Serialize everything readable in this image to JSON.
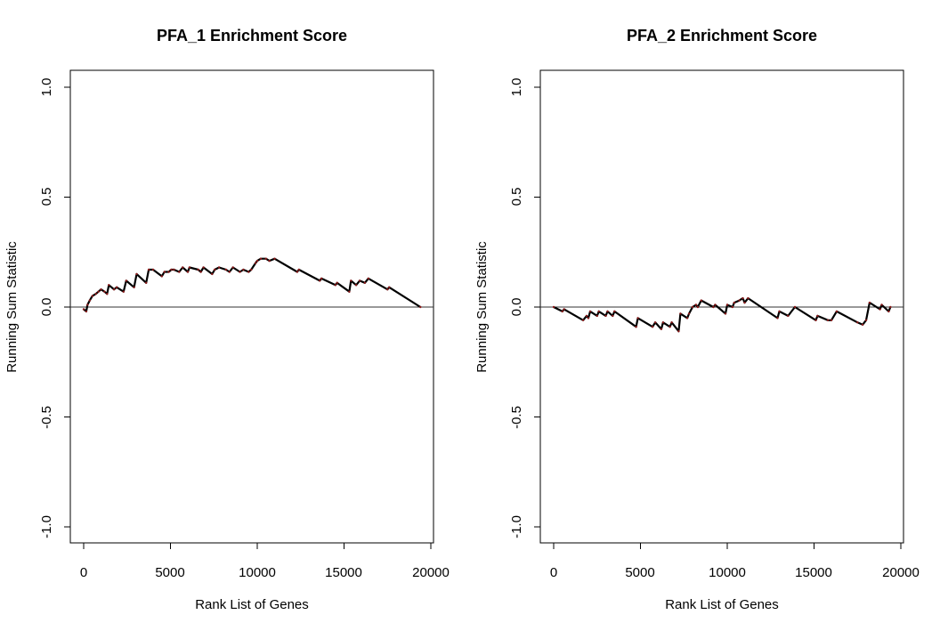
{
  "chart_data": [
    {
      "type": "line",
      "title": "PFA_1 Enrichment Score",
      "xlabel": "Rank List of Genes",
      "ylabel": "Running Sum Statistic",
      "xlim": [
        0,
        20000
      ],
      "ylim": [
        -1.0,
        1.0
      ],
      "x_ticks": [
        "0",
        "5000",
        "10000",
        "15000",
        "20000"
      ],
      "y_ticks": [
        "-1.0",
        "-0.5",
        "0.0",
        "0.5",
        "1.0"
      ],
      "reference_line": 0,
      "series": [
        {
          "color": "#000000",
          "points": [
            [
              0,
              -0.01
            ],
            [
              150,
              -0.02
            ],
            [
              220,
              0.01
            ],
            [
              350,
              0.03
            ],
            [
              500,
              0.05
            ],
            [
              700,
              0.06
            ],
            [
              850,
              0.07
            ],
            [
              1000,
              0.08
            ],
            [
              1200,
              0.07
            ],
            [
              1350,
              0.06
            ],
            [
              1450,
              0.1
            ],
            [
              1750,
              0.08
            ],
            [
              1900,
              0.09
            ],
            [
              2300,
              0.07
            ],
            [
              2450,
              0.12
            ],
            [
              2900,
              0.09
            ],
            [
              3050,
              0.15
            ],
            [
              3600,
              0.11
            ],
            [
              3750,
              0.17
            ],
            [
              4000,
              0.17
            ],
            [
              4500,
              0.14
            ],
            [
              4650,
              0.16
            ],
            [
              4900,
              0.16
            ],
            [
              5050,
              0.17
            ],
            [
              5200,
              0.17
            ],
            [
              5500,
              0.16
            ],
            [
              5700,
              0.18
            ],
            [
              6000,
              0.16
            ],
            [
              6100,
              0.18
            ],
            [
              6600,
              0.17
            ],
            [
              6750,
              0.16
            ],
            [
              6900,
              0.18
            ],
            [
              7400,
              0.15
            ],
            [
              7550,
              0.17
            ],
            [
              7800,
              0.18
            ],
            [
              8200,
              0.17
            ],
            [
              8400,
              0.16
            ],
            [
              8600,
              0.18
            ],
            [
              9000,
              0.16
            ],
            [
              9200,
              0.17
            ],
            [
              9500,
              0.16
            ],
            [
              9650,
              0.17
            ],
            [
              9900,
              0.2
            ],
            [
              10000,
              0.21
            ],
            [
              10200,
              0.22
            ],
            [
              10500,
              0.22
            ],
            [
              10700,
              0.21
            ],
            [
              11000,
              0.22
            ],
            [
              12300,
              0.16
            ],
            [
              12400,
              0.17
            ],
            [
              13600,
              0.12
            ],
            [
              13700,
              0.13
            ],
            [
              14500,
              0.1
            ],
            [
              14600,
              0.11
            ],
            [
              15300,
              0.07
            ],
            [
              15400,
              0.12
            ],
            [
              15700,
              0.1
            ],
            [
              15900,
              0.12
            ],
            [
              16200,
              0.11
            ],
            [
              16400,
              0.13
            ],
            [
              17500,
              0.08
            ],
            [
              17600,
              0.09
            ],
            [
              19400,
              0.0
            ]
          ]
        }
      ]
    },
    {
      "type": "line",
      "title": "PFA_2 Enrichment Score",
      "xlabel": "Rank List of Genes",
      "ylabel": "Running Sum Statistic",
      "xlim": [
        0,
        20000
      ],
      "ylim": [
        -1.0,
        1.0
      ],
      "x_ticks": [
        "0",
        "5000",
        "10000",
        "15000",
        "20000"
      ],
      "y_ticks": [
        "-1.0",
        "-0.5",
        "0.0",
        "0.5",
        "1.0"
      ],
      "reference_line": 0,
      "series": [
        {
          "color": "#000000",
          "points": [
            [
              0,
              0.0
            ],
            [
              500,
              -0.02
            ],
            [
              600,
              -0.01
            ],
            [
              1700,
              -0.06
            ],
            [
              1900,
              -0.04
            ],
            [
              2000,
              -0.05
            ],
            [
              2100,
              -0.02
            ],
            [
              2500,
              -0.04
            ],
            [
              2600,
              -0.02
            ],
            [
              3000,
              -0.04
            ],
            [
              3100,
              -0.02
            ],
            [
              3400,
              -0.04
            ],
            [
              3500,
              -0.02
            ],
            [
              4750,
              -0.09
            ],
            [
              4850,
              -0.05
            ],
            [
              5700,
              -0.09
            ],
            [
              5850,
              -0.07
            ],
            [
              6200,
              -0.1
            ],
            [
              6300,
              -0.07
            ],
            [
              6700,
              -0.09
            ],
            [
              6800,
              -0.07
            ],
            [
              7200,
              -0.11
            ],
            [
              7300,
              -0.03
            ],
            [
              7700,
              -0.05
            ],
            [
              7800,
              -0.03
            ],
            [
              8000,
              0.0
            ],
            [
              8200,
              0.01
            ],
            [
              8300,
              0.0
            ],
            [
              8500,
              0.03
            ],
            [
              9200,
              0.0
            ],
            [
              9300,
              0.01
            ],
            [
              9900,
              -0.03
            ],
            [
              10000,
              0.01
            ],
            [
              10300,
              0.0
            ],
            [
              10400,
              0.02
            ],
            [
              10700,
              0.03
            ],
            [
              10900,
              0.04
            ],
            [
              11000,
              0.02
            ],
            [
              11200,
              0.04
            ],
            [
              12900,
              -0.05
            ],
            [
              13000,
              -0.02
            ],
            [
              13500,
              -0.04
            ],
            [
              13900,
              0.0
            ],
            [
              15100,
              -0.06
            ],
            [
              15200,
              -0.04
            ],
            [
              15800,
              -0.06
            ],
            [
              16000,
              -0.06
            ],
            [
              16300,
              -0.02
            ],
            [
              17500,
              -0.07
            ],
            [
              17800,
              -0.08
            ],
            [
              18000,
              -0.06
            ],
            [
              18200,
              0.02
            ],
            [
              18800,
              -0.01
            ],
            [
              18900,
              0.01
            ],
            [
              19300,
              -0.02
            ],
            [
              19400,
              0.0
            ]
          ]
        }
      ]
    }
  ]
}
